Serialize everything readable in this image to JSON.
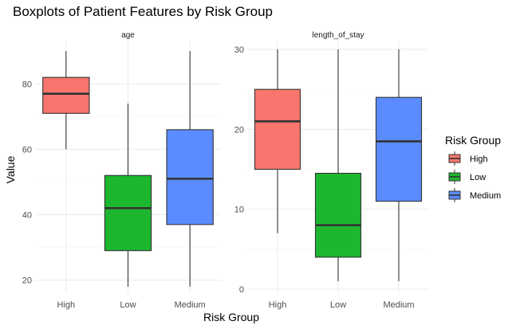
{
  "chart_data": {
    "type": "boxplot",
    "title": "Boxplots of Patient Features by Risk Group",
    "xlabel": "Risk Group",
    "ylabel": "Value",
    "categories": [
      "High",
      "Low",
      "Medium"
    ],
    "legend": {
      "title": "Risk Group",
      "placement": "right",
      "entries": [
        "High",
        "Low",
        "Medium"
      ],
      "colors": [
        "#F8766D",
        "#1CB72E",
        "#5B8CFF"
      ]
    },
    "grid": true,
    "facets": [
      {
        "name": "age",
        "ylim": [
          16,
          93
        ],
        "yticks": [
          20,
          40,
          60,
          80
        ],
        "boxes": [
          {
            "category": "High",
            "min": 60,
            "q1": 71,
            "median": 77,
            "q3": 82,
            "max": 90
          },
          {
            "category": "Low",
            "min": 18,
            "q1": 29,
            "median": 42,
            "q3": 52,
            "max": 74
          },
          {
            "category": "Medium",
            "min": 18,
            "q1": 37,
            "median": 51,
            "q3": 66,
            "max": 90
          }
        ]
      },
      {
        "name": "length_of_stay",
        "ylim": [
          -0.5,
          31
        ],
        "yticks": [
          0,
          10,
          20,
          30
        ],
        "boxes": [
          {
            "category": "High",
            "min": 7,
            "q1": 15,
            "median": 21,
            "q3": 25,
            "max": 30
          },
          {
            "category": "Low",
            "min": 1,
            "q1": 4,
            "median": 8,
            "q3": 14.5,
            "max": 30
          },
          {
            "category": "Medium",
            "min": 1,
            "q1": 11,
            "median": 18.5,
            "q3": 24,
            "max": 30
          }
        ]
      }
    ]
  }
}
